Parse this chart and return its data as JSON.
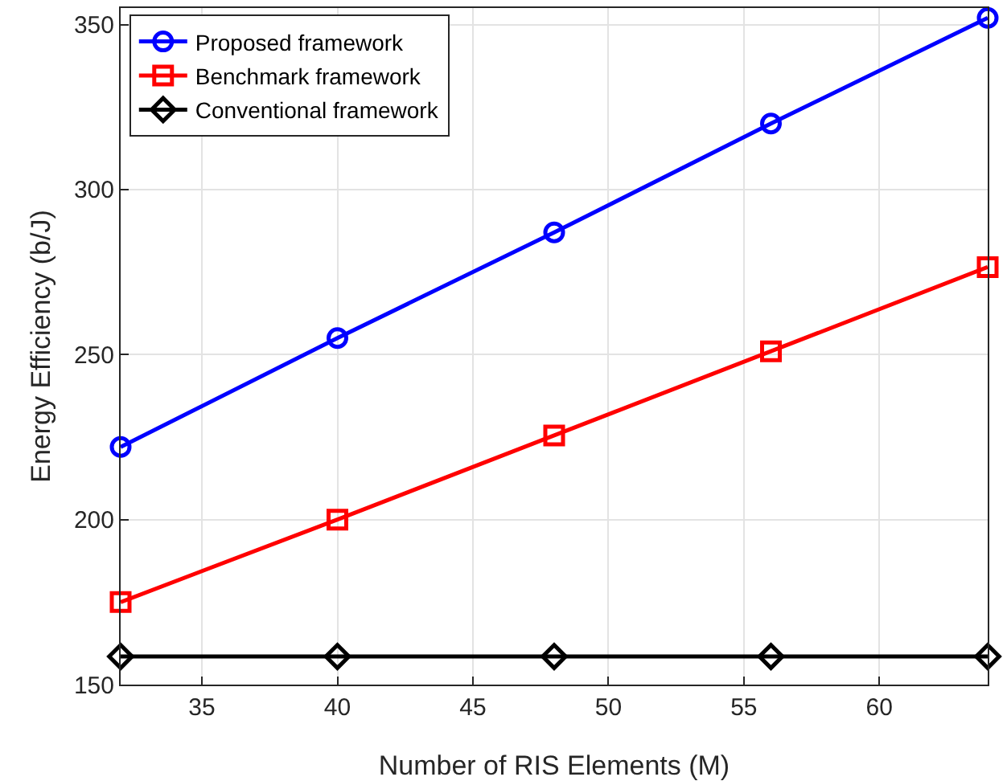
{
  "chart_data": {
    "type": "line",
    "xlabel": "Number of RIS Elements (M)",
    "ylabel": "Energy Efficiency (b/J)",
    "x": [
      32,
      40,
      48,
      56,
      64
    ],
    "xlim": [
      32,
      64
    ],
    "xticks": [
      35,
      40,
      45,
      50,
      55,
      60
    ],
    "ylim": [
      150,
      355
    ],
    "yticks": [
      150,
      200,
      250,
      300,
      350
    ],
    "grid": true,
    "legend": "top left",
    "series": [
      {
        "name": "Proposed framework",
        "color": "#0000ff",
        "marker": "circle",
        "values": [
          222,
          255,
          287,
          320,
          352
        ]
      },
      {
        "name": "Benchmark framework",
        "color": "#ff0000",
        "marker": "square",
        "values": [
          175,
          200,
          225.5,
          251,
          276.5
        ]
      },
      {
        "name": "Conventional framework",
        "color": "#000000",
        "marker": "diamond",
        "values": [
          158.5,
          158.5,
          158.5,
          158.5,
          158.5
        ]
      }
    ]
  }
}
